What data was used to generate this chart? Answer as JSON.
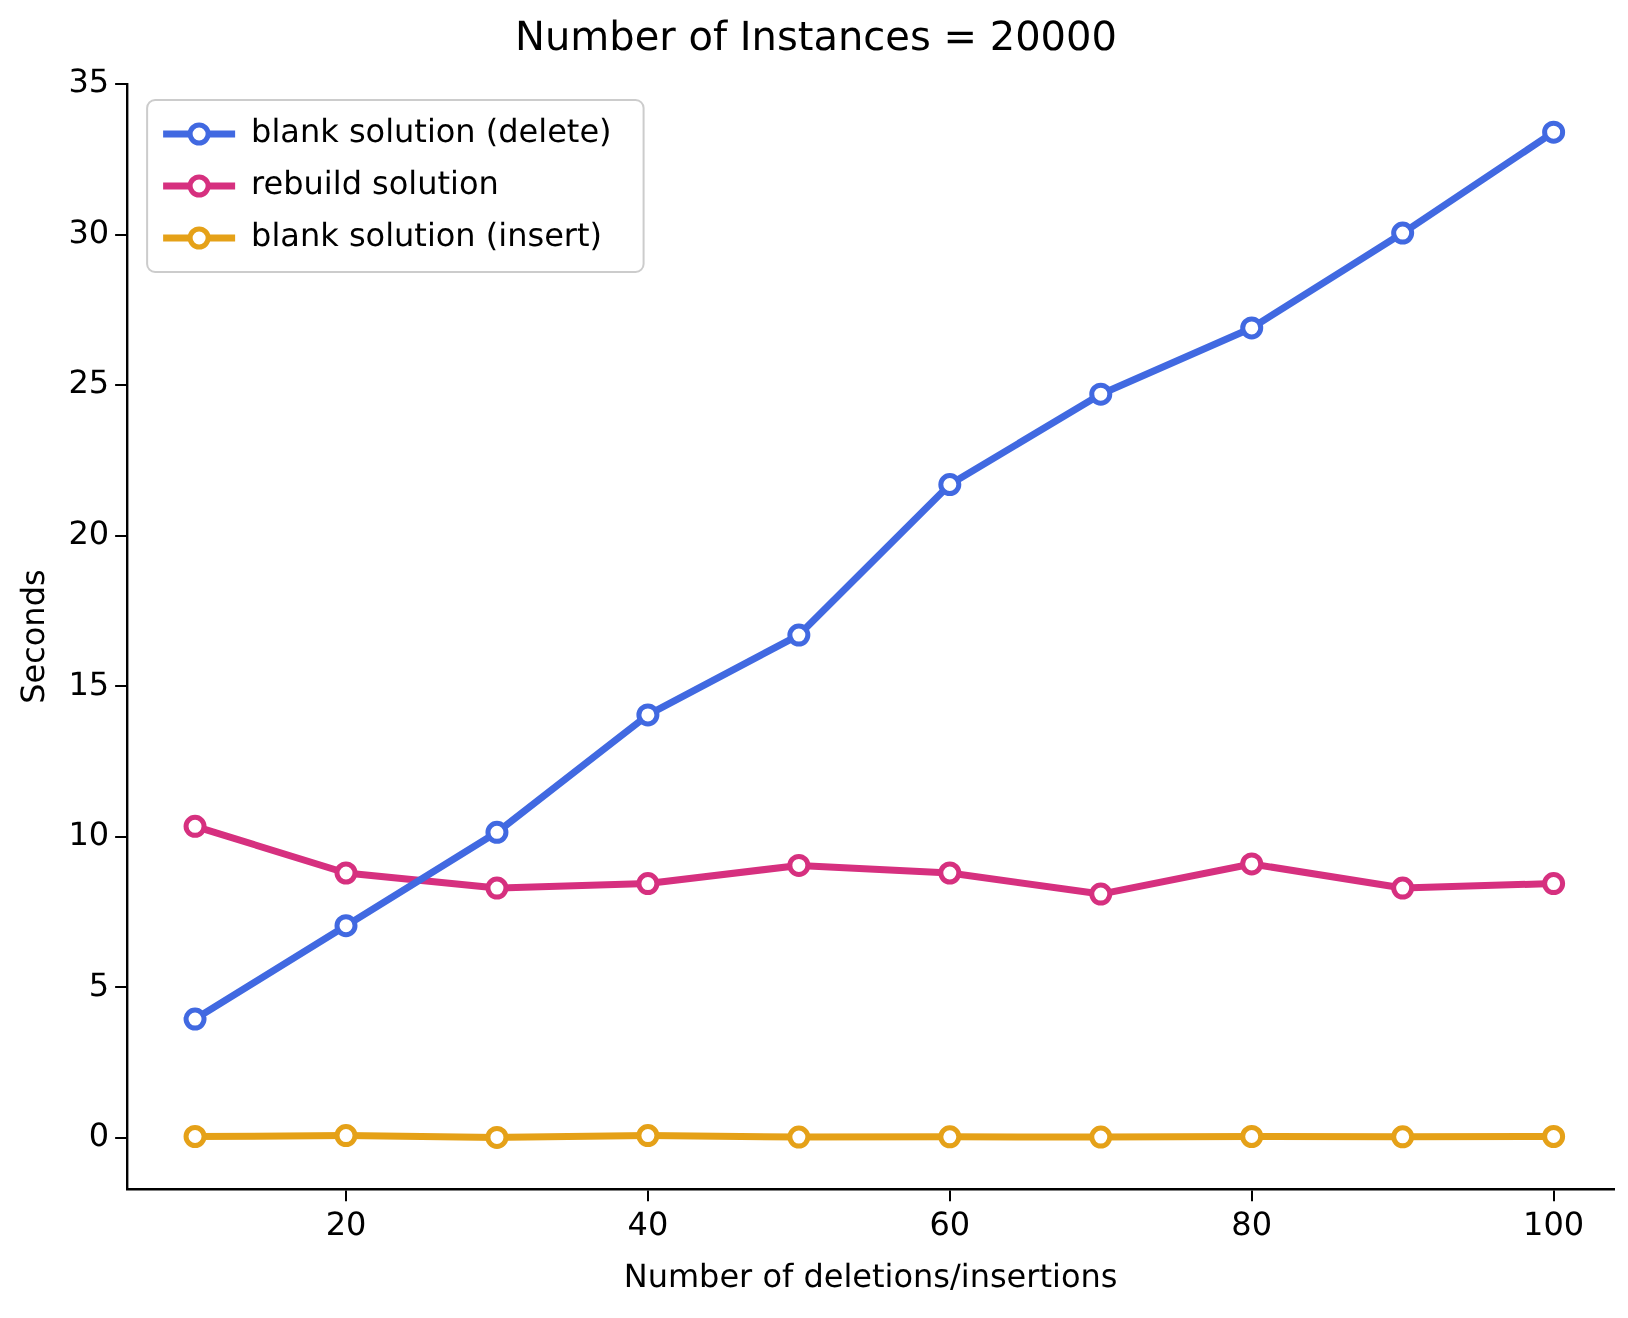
{
  "chart_data": {
    "type": "line",
    "title": "Number of Instances = 20000",
    "xlabel": "Number of deletions/insertions",
    "ylabel": "Seconds",
    "x": [
      10,
      20,
      30,
      40,
      50,
      60,
      70,
      80,
      90,
      100
    ],
    "series": [
      {
        "name": "blank solution (delete)",
        "color": "#4169e1",
        "values": [
          3.95,
          7.05,
          10.15,
          14.05,
          16.7,
          21.7,
          24.7,
          26.9,
          30.05,
          33.4
        ]
      },
      {
        "name": "rebuild solution",
        "color": "#d6307f",
        "values": [
          10.35,
          8.8,
          8.3,
          8.45,
          9.05,
          8.8,
          8.1,
          9.1,
          8.3,
          8.45
        ]
      },
      {
        "name": "blank solution (insert)",
        "color": "#e5a118",
        "values": [
          0.05,
          0.08,
          0.02,
          0.08,
          0.03,
          0.04,
          0.03,
          0.05,
          0.04,
          0.05
        ]
      }
    ],
    "xlim": [
      5.5,
      104
    ],
    "xticks": [
      20,
      40,
      60,
      80,
      100
    ],
    "ylim": [
      -1.7,
      35
    ],
    "yticks": [
      0,
      5,
      10,
      15,
      20,
      25,
      30,
      35
    ],
    "grid": false,
    "legend": "top left",
    "marker": "circle",
    "line_style": "solid"
  }
}
